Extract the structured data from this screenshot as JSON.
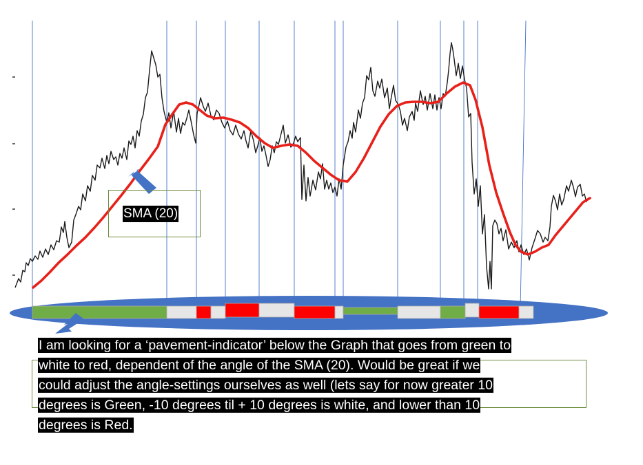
{
  "sma_label": "SMA (20)",
  "note_lines": [
    "I am looking for a ‘pavement-indicator’ below the Graph that goes from green to",
    "white to red, dependent of the angle of the SMA (20).  Would be great if we",
    "could adjust the angle-settings ourselves as well (lets say  for now greater 10",
    "degrees is Green, -10 degrees til + 10 degrees is white, and lower than 10",
    "degrees is Red."
  ],
  "colors": {
    "price_line": "#1a1a1a",
    "sma_line": "#e8201a",
    "divider_lines": "#4472c4",
    "ellipse": "#4472c4",
    "arrow": "#4472c4",
    "green": "#70ad47",
    "white": "#e7e6e6",
    "red": "#ff0000"
  },
  "pavement": [
    "green",
    "white",
    "red",
    "white",
    "red",
    "white",
    "red",
    "white",
    "green",
    "white",
    "green",
    "white",
    "red",
    "white"
  ]
}
